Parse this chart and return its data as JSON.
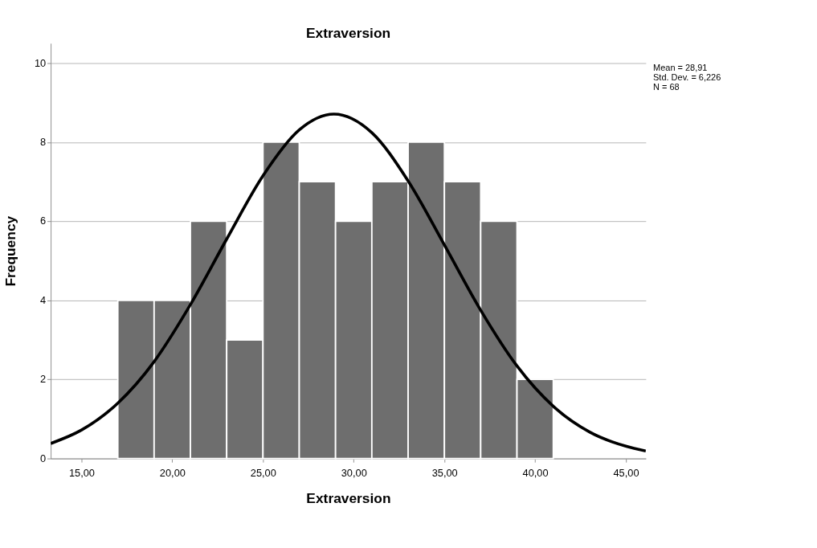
{
  "chart_data": {
    "type": "histogram",
    "title": "Extraversion",
    "xlabel": "Extraversion",
    "ylabel": "Frequency",
    "bins": [
      17,
      19,
      21,
      23,
      25,
      27,
      29,
      31,
      33,
      35,
      37,
      39,
      41
    ],
    "values": [
      4,
      4,
      6,
      3,
      8,
      7,
      6,
      7,
      8,
      7,
      6,
      2
    ],
    "color": "#6e6e6e",
    "series": [
      {
        "type": "line",
        "color": "#000000",
        "x": [
          13.3,
          15,
          17,
          19,
          21,
          23,
          25,
          27,
          28.91,
          31,
          33,
          35,
          37,
          39,
          41,
          43,
          45,
          46.1
        ],
        "values": [
          0.38,
          0.72,
          1.4,
          2.45,
          3.89,
          5.55,
          7.15,
          8.31,
          8.71,
          8.24,
          7.02,
          5.4,
          3.75,
          2.34,
          1.32,
          0.67,
          0.31,
          0.19
        ]
      }
    ],
    "xlim": [
      13.3,
      46.1
    ],
    "xticks": [
      {
        "value": 15,
        "label": "15,00"
      },
      {
        "value": 20,
        "label": "20,00"
      },
      {
        "value": 25,
        "label": "25,00"
      },
      {
        "value": 30,
        "label": "30,00"
      },
      {
        "value": 35,
        "label": "35,00"
      },
      {
        "value": 40,
        "label": "40,00"
      },
      {
        "value": 45,
        "label": "45,00"
      }
    ],
    "ylim": [
      0,
      10.5
    ],
    "yticks": [
      0,
      2,
      4,
      6,
      8,
      10
    ],
    "grid": "y",
    "annotations": [
      "Mean = 28,91",
      "Std. Dev. = 6,226",
      "N = 68"
    ]
  }
}
